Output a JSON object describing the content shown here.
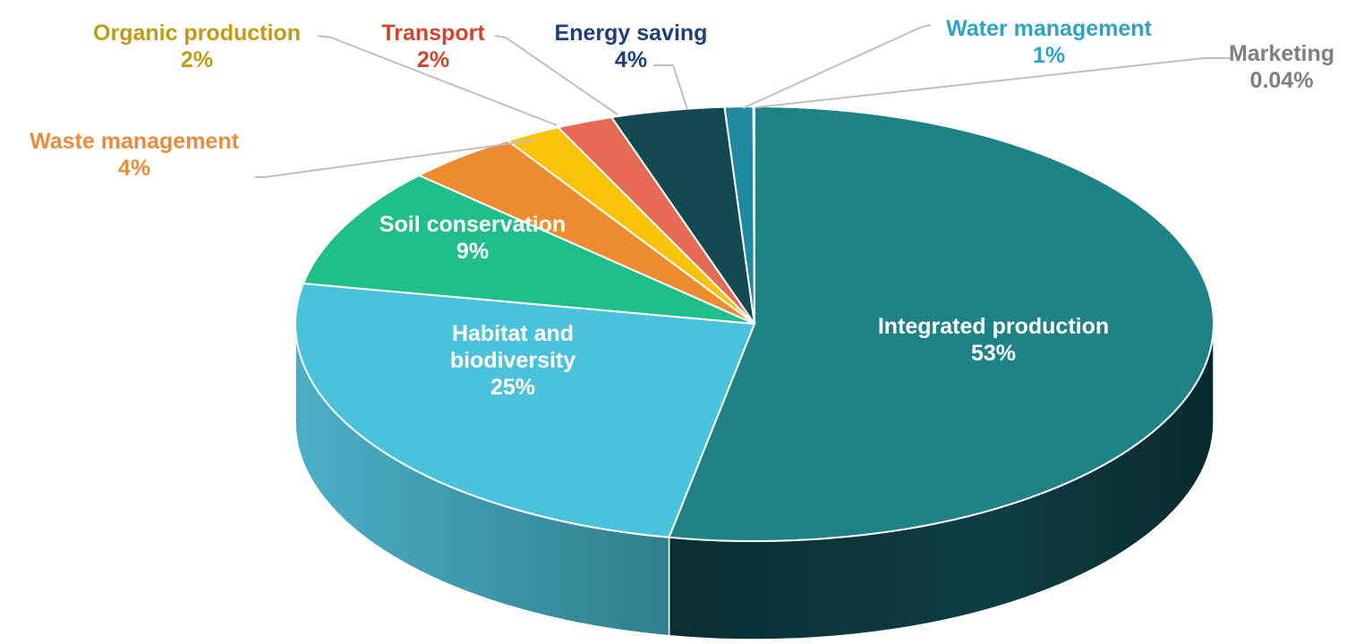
{
  "chart_data": {
    "type": "pie3d",
    "categories": [
      "Integrated production",
      "Habitat and biodiversity",
      "Soil conservation",
      "Waste management",
      "Organic production",
      "Transport",
      "Energy saving",
      "Water management",
      "Marketing"
    ],
    "values": [
      53,
      25,
      9,
      4,
      2,
      2,
      4,
      1,
      0.04
    ],
    "value_labels": [
      "53%",
      "25%",
      "9%",
      "4%",
      "2%",
      "2%",
      "4%",
      "1%",
      "0.04%"
    ],
    "colors": [
      "#1e8286",
      "#4bc2db",
      "#20be8a",
      "#ed8b30",
      "#fbc20a",
      "#e76a55",
      "#134a52",
      "#1e8aa0",
      "#d9d9d9"
    ],
    "label_colors": [
      "#ffffff",
      "#ffffff",
      "#ffffff",
      "#ec8c3a",
      "#c49a14",
      "#d0452b",
      "#1f3f7a",
      "#2ea3c4",
      "#7f7f7f"
    ]
  }
}
